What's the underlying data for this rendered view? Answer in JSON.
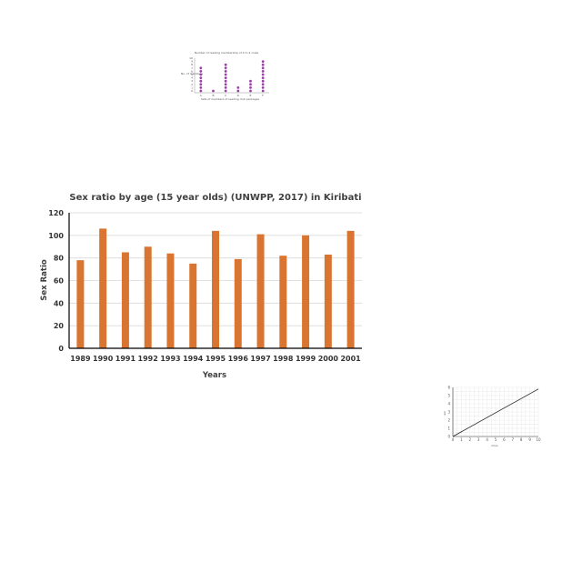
{
  "chart_data": [
    {
      "type": "bar",
      "title": "Sex ratio by age (15 year olds) (UNWPP, 2017) in Kiribati",
      "xlabel": "Years",
      "ylabel": "Sex Ratio",
      "categories": [
        "1989",
        "1990",
        "1991",
        "1992",
        "1993",
        "1994",
        "1995",
        "1996",
        "1997",
        "1998",
        "1999",
        "2000",
        "2001"
      ],
      "values": [
        78,
        106,
        85,
        90,
        84,
        75,
        104,
        79,
        101,
        82,
        100,
        83,
        104
      ],
      "ylim": [
        0,
        120
      ],
      "yticks": [
        0,
        20,
        40,
        60,
        80,
        100,
        120
      ],
      "grid": true,
      "color": "#d97530"
    },
    {
      "type": "scatter",
      "title": "Number of reading membership of 2 to 4 clubs",
      "xlabel": "Sets of members of reading club packages",
      "ylabel": "No. of members",
      "categories": [
        "A",
        "B",
        "C",
        "D",
        "E",
        "F"
      ],
      "values": [
        8,
        1,
        9,
        2,
        4,
        10
      ],
      "color": "#9b3fa8"
    },
    {
      "type": "line",
      "xlabel": "mins",
      "ylabel": "km",
      "x": [
        0,
        10
      ],
      "y": [
        0,
        5.8
      ],
      "xlim": [
        0,
        10
      ],
      "ylim": [
        0,
        6
      ],
      "xticks": [
        0,
        1,
        2,
        3,
        4,
        5,
        6,
        7,
        8,
        9,
        10
      ],
      "yticks": [
        0,
        1,
        2,
        3,
        4,
        5,
        6
      ],
      "grid": true
    }
  ]
}
